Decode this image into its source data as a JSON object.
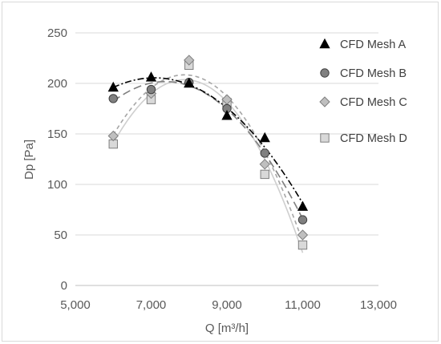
{
  "chart_data": {
    "type": "scatter",
    "title": "",
    "xlabel": "Q [m³/h]",
    "ylabel": "Dp [Pa]",
    "xlim": [
      5000,
      13000
    ],
    "ylim": [
      0,
      250
    ],
    "x_ticks": [
      5000,
      7000,
      9000,
      11000,
      13000
    ],
    "x_tick_labels": [
      "5,000",
      "7,000",
      "9,000",
      "11,000",
      "13,000"
    ],
    "y_ticks": [
      0,
      50,
      100,
      150,
      200,
      250
    ],
    "y_tick_labels": [
      "0",
      "50",
      "100",
      "150",
      "200",
      "250"
    ],
    "grid": "horizontal major gridlines",
    "legend_position": "right",
    "trendline": "polynomial order 2",
    "series": [
      {
        "name": "CFD Mesh A",
        "marker": "triangle",
        "fill": "#000000",
        "stroke": "#000000",
        "trend_color": "#000000",
        "trend_dash": "8,3,2,3",
        "x": [
          6000,
          7000,
          8000,
          9000,
          10000,
          11000
        ],
        "y": [
          196,
          206,
          200,
          168,
          146,
          78
        ]
      },
      {
        "name": "CFD Mesh B",
        "marker": "circle",
        "fill": "#808080",
        "stroke": "#404040",
        "trend_color": "#7f7f7f",
        "trend_dash": "10,5",
        "x": [
          6000,
          7000,
          8000,
          9000,
          10000,
          11000
        ],
        "y": [
          185,
          194,
          201,
          175,
          131,
          65
        ]
      },
      {
        "name": "CFD Mesh C",
        "marker": "diamond",
        "fill": "#bfbfbf",
        "stroke": "#7f7f7f",
        "trend_color": "#a6a6a6",
        "trend_dash": "5,4",
        "x": [
          6000,
          7000,
          8000,
          9000,
          10000,
          11000
        ],
        "y": [
          148,
          190,
          223,
          184,
          120,
          50
        ]
      },
      {
        "name": "CFD Mesh D",
        "marker": "square",
        "fill": "#d9d9d9",
        "stroke": "#7f7f7f",
        "trend_color": "#cfcfcf",
        "trend_dash": "none",
        "x": [
          6000,
          7000,
          8000,
          9000,
          10000,
          11000
        ],
        "y": [
          140,
          184,
          218,
          181,
          110,
          40
        ]
      }
    ]
  }
}
